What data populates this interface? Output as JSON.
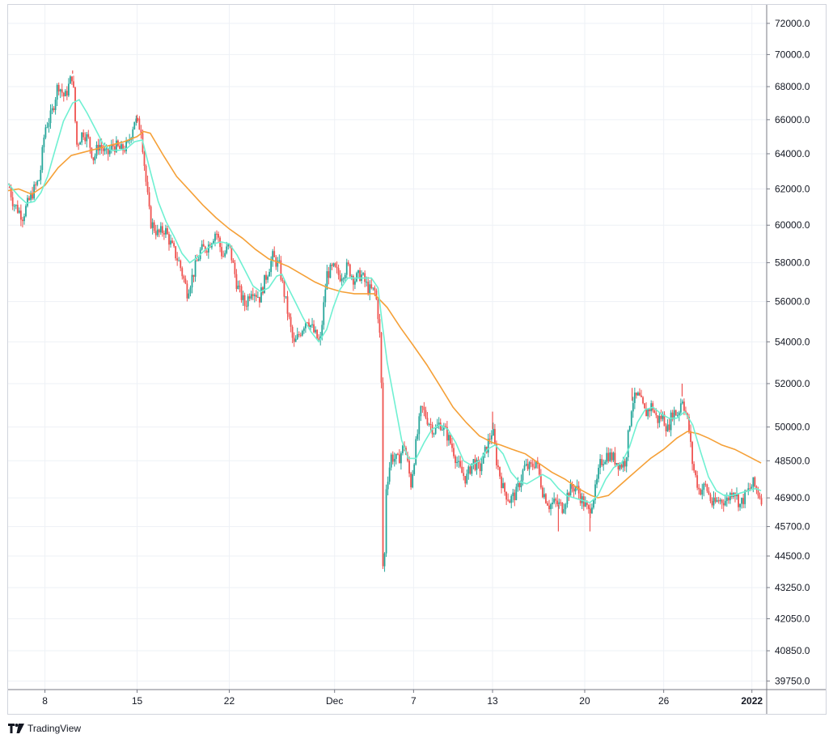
{
  "chart_data": {
    "type": "candlestick",
    "y_axis_ticks": [
      "72000.0",
      "70000.0",
      "68000.0",
      "66000.0",
      "64000.0",
      "62000.0",
      "60000.0",
      "58000.0",
      "56000.0",
      "54000.0",
      "52000.0",
      "50000.0",
      "48500.0",
      "46900.0",
      "45700.0",
      "44500.0",
      "43250.0",
      "42050.0",
      "40850.0",
      "39750.0"
    ],
    "y_axis_values": [
      72000,
      70000,
      68000,
      66000,
      64000,
      62000,
      60000,
      58000,
      56000,
      54000,
      52000,
      50000,
      48500,
      46900,
      45700,
      44500,
      43250,
      42050,
      40850,
      39750
    ],
    "y_scale": "log",
    "ylim": [
      39500,
      73000
    ],
    "x_axis_ticks": [
      {
        "label": "8",
        "day": 8,
        "bold": false
      },
      {
        "label": "15",
        "day": 15,
        "bold": false
      },
      {
        "label": "22",
        "day": 22,
        "bold": false
      },
      {
        "label": "Dec",
        "day": 30,
        "bold": false
      },
      {
        "label": "7",
        "day": 36,
        "bold": false
      },
      {
        "label": "13",
        "day": 42,
        "bold": false
      },
      {
        "label": "20",
        "day": 49,
        "bold": false
      },
      {
        "label": "26",
        "day": 55,
        "bold": false
      },
      {
        "label": "2022",
        "day": 61.7,
        "bold": true
      }
    ],
    "xlim": [
      5.2,
      62.7
    ],
    "grid": true,
    "colors": {
      "up": "#26a69a",
      "down": "#ef5350",
      "ma_fast": "#6ff0d2",
      "ma_slow": "#f5a037",
      "grid": "#eef1f6",
      "axis": "#787b86"
    },
    "price_path": [
      [
        5.2,
        62400
      ],
      [
        5.6,
        61200
      ],
      [
        6.3,
        60500
      ],
      [
        7.0,
        61700
      ],
      [
        7.6,
        62600
      ],
      [
        8.0,
        65500
      ],
      [
        8.5,
        66300
      ],
      [
        9.0,
        68200
      ],
      [
        9.5,
        67300
      ],
      [
        10.1,
        68800
      ],
      [
        10.4,
        64500
      ],
      [
        10.9,
        65300
      ],
      [
        11.3,
        64800
      ],
      [
        11.7,
        63700
      ],
      [
        12.1,
        64600
      ],
      [
        12.7,
        63900
      ],
      [
        13.2,
        64500
      ],
      [
        13.8,
        64200
      ],
      [
        14.3,
        64500
      ],
      [
        14.8,
        66000
      ],
      [
        15.3,
        65500
      ],
      [
        15.7,
        62200
      ],
      [
        16.0,
        60200
      ],
      [
        16.6,
        59500
      ],
      [
        17.1,
        59800
      ],
      [
        17.6,
        58900
      ],
      [
        18.2,
        58000
      ],
      [
        18.8,
        56500
      ],
      [
        19.3,
        57500
      ],
      [
        19.8,
        58600
      ],
      [
        20.4,
        58900
      ],
      [
        21.0,
        59700
      ],
      [
        21.5,
        58300
      ],
      [
        22.0,
        58900
      ],
      [
        22.6,
        56800
      ],
      [
        23.2,
        55800
      ],
      [
        23.7,
        56700
      ],
      [
        24.3,
        56200
      ],
      [
        24.8,
        57300
      ],
      [
        25.3,
        58300
      ],
      [
        25.8,
        57800
      ],
      [
        26.4,
        55600
      ],
      [
        26.9,
        53800
      ],
      [
        27.4,
        54500
      ],
      [
        27.9,
        55200
      ],
      [
        28.4,
        54500
      ],
      [
        28.9,
        53900
      ],
      [
        29.4,
        57400
      ],
      [
        29.9,
        57700
      ],
      [
        30.4,
        57300
      ],
      [
        31.0,
        57800
      ],
      [
        31.5,
        57100
      ],
      [
        32.0,
        57400
      ],
      [
        32.6,
        56600
      ],
      [
        33.1,
        56500
      ],
      [
        33.4,
        54800
      ],
      [
        33.6,
        51000
      ],
      [
        33.7,
        42000
      ],
      [
        33.9,
        47300
      ],
      [
        34.3,
        48700
      ],
      [
        34.8,
        48500
      ],
      [
        35.3,
        49200
      ],
      [
        35.8,
        47500
      ],
      [
        36.2,
        49300
      ],
      [
        36.6,
        50900
      ],
      [
        37.1,
        50300
      ],
      [
        37.6,
        49800
      ],
      [
        38.0,
        50200
      ],
      [
        38.5,
        49700
      ],
      [
        39.0,
        49000
      ],
      [
        39.5,
        48100
      ],
      [
        40.0,
        47700
      ],
      [
        40.5,
        48500
      ],
      [
        41.0,
        48100
      ],
      [
        41.5,
        49000
      ],
      [
        42.0,
        49900
      ],
      [
        42.3,
        48500
      ],
      [
        42.8,
        47300
      ],
      [
        43.3,
        46800
      ],
      [
        43.8,
        47100
      ],
      [
        44.4,
        48200
      ],
      [
        44.9,
        48200
      ],
      [
        45.3,
        48500
      ],
      [
        45.8,
        47200
      ],
      [
        46.3,
        46600
      ],
      [
        46.8,
        46700
      ],
      [
        47.3,
        46500
      ],
      [
        47.8,
        47200
      ],
      [
        48.3,
        47400
      ],
      [
        48.8,
        46800
      ],
      [
        49.3,
        46300
      ],
      [
        49.8,
        47200
      ],
      [
        50.2,
        48400
      ],
      [
        50.7,
        48800
      ],
      [
        51.2,
        48600
      ],
      [
        51.7,
        48300
      ],
      [
        52.1,
        48500
      ],
      [
        52.6,
        51200
      ],
      [
        53.1,
        51400
      ],
      [
        53.6,
        50600
      ],
      [
        54.1,
        51000
      ],
      [
        54.5,
        50300
      ],
      [
        54.9,
        50500
      ],
      [
        55.3,
        49900
      ],
      [
        55.7,
        50700
      ],
      [
        56.1,
        50600
      ],
      [
        56.4,
        51400
      ],
      [
        56.9,
        50000
      ],
      [
        57.2,
        48300
      ],
      [
        57.7,
        47200
      ],
      [
        58.2,
        47400
      ],
      [
        58.7,
        46600
      ],
      [
        59.2,
        46800
      ],
      [
        59.8,
        46800
      ],
      [
        60.3,
        47300
      ],
      [
        60.8,
        46600
      ],
      [
        61.3,
        47100
      ],
      [
        61.8,
        47500
      ],
      [
        62.4,
        46900
      ]
    ],
    "wicks": [
      {
        "day": 33.7,
        "low": 42000
      },
      {
        "day": 10.1,
        "high": 69000
      },
      {
        "day": 15.0,
        "high": 66300
      },
      {
        "day": 52.6,
        "high": 51800
      },
      {
        "day": 56.4,
        "high": 52000
      },
      {
        "day": 42.0,
        "high": 50700
      },
      {
        "day": 47.0,
        "low": 45500
      },
      {
        "day": 49.4,
        "low": 45500
      }
    ],
    "ma_fast": [
      [
        5.2,
        62300
      ],
      [
        6.0,
        61600
      ],
      [
        6.6,
        61200
      ],
      [
        7.2,
        61300
      ],
      [
        7.7,
        61800
      ],
      [
        8.2,
        62700
      ],
      [
        8.8,
        64300
      ],
      [
        9.4,
        65900
      ],
      [
        10.1,
        67000
      ],
      [
        10.6,
        67200
      ],
      [
        11.2,
        66400
      ],
      [
        11.8,
        65500
      ],
      [
        12.4,
        64600
      ],
      [
        13.0,
        64200
      ],
      [
        13.6,
        64200
      ],
      [
        14.2,
        64300
      ],
      [
        14.8,
        64700
      ],
      [
        15.4,
        64800
      ],
      [
        16.0,
        63000
      ],
      [
        16.6,
        61300
      ],
      [
        17.2,
        60200
      ],
      [
        17.8,
        59400
      ],
      [
        18.4,
        58500
      ],
      [
        19.0,
        58000
      ],
      [
        19.6,
        58300
      ],
      [
        20.2,
        58700
      ],
      [
        20.8,
        59000
      ],
      [
        21.4,
        59100
      ],
      [
        22.0,
        59000
      ],
      [
        22.6,
        58400
      ],
      [
        23.2,
        57600
      ],
      [
        23.8,
        56800
      ],
      [
        24.4,
        56500
      ],
      [
        25.0,
        56700
      ],
      [
        25.6,
        57300
      ],
      [
        26.0,
        57400
      ],
      [
        26.4,
        56800
      ],
      [
        27.0,
        56000
      ],
      [
        27.6,
        55200
      ],
      [
        28.2,
        54500
      ],
      [
        28.8,
        54000
      ],
      [
        29.4,
        54600
      ],
      [
        29.9,
        55700
      ],
      [
        30.4,
        56600
      ],
      [
        31.0,
        57200
      ],
      [
        31.6,
        57200
      ],
      [
        32.2,
        57200
      ],
      [
        32.8,
        57200
      ],
      [
        33.3,
        56700
      ],
      [
        33.6,
        55000
      ],
      [
        34.0,
        53000
      ],
      [
        34.6,
        51000
      ],
      [
        35.1,
        49400
      ],
      [
        35.6,
        48600
      ],
      [
        36.2,
        48600
      ],
      [
        36.8,
        49300
      ],
      [
        37.4,
        49900
      ],
      [
        38.0,
        50100
      ],
      [
        38.6,
        49900
      ],
      [
        39.2,
        49300
      ],
      [
        39.8,
        48500
      ],
      [
        40.4,
        48300
      ],
      [
        41.0,
        48500
      ],
      [
        41.6,
        49000
      ],
      [
        42.2,
        49200
      ],
      [
        42.8,
        48800
      ],
      [
        43.4,
        48000
      ],
      [
        44.0,
        47600
      ],
      [
        44.6,
        47500
      ],
      [
        45.2,
        47700
      ],
      [
        45.8,
        47900
      ],
      [
        46.4,
        47700
      ],
      [
        47.0,
        47300
      ],
      [
        47.6,
        47000
      ],
      [
        48.2,
        46900
      ],
      [
        48.8,
        46800
      ],
      [
        49.4,
        46700
      ],
      [
        50.0,
        47000
      ],
      [
        50.6,
        47700
      ],
      [
        51.2,
        48200
      ],
      [
        51.8,
        48400
      ],
      [
        52.4,
        49100
      ],
      [
        53.0,
        50200
      ],
      [
        53.6,
        50800
      ],
      [
        54.2,
        50900
      ],
      [
        54.8,
        50600
      ],
      [
        55.4,
        50400
      ],
      [
        56.0,
        50400
      ],
      [
        56.6,
        50700
      ],
      [
        57.2,
        50100
      ],
      [
        57.8,
        48900
      ],
      [
        58.4,
        47800
      ],
      [
        59.0,
        47200
      ],
      [
        59.6,
        47000
      ],
      [
        60.2,
        47000
      ],
      [
        60.8,
        47100
      ],
      [
        61.4,
        47200
      ],
      [
        62.0,
        47300
      ],
      [
        62.4,
        47200
      ]
    ],
    "ma_slow": [
      [
        5.2,
        61900
      ],
      [
        6.0,
        62000
      ],
      [
        7.0,
        61700
      ],
      [
        8.0,
        62200
      ],
      [
        9.0,
        63200
      ],
      [
        10.0,
        63900
      ],
      [
        11.0,
        64100
      ],
      [
        12.0,
        64300
      ],
      [
        13.0,
        64500
      ],
      [
        14.0,
        64700
      ],
      [
        15.0,
        65000
      ],
      [
        15.5,
        65300
      ],
      [
        16.0,
        65200
      ],
      [
        17.0,
        63900
      ],
      [
        18.0,
        62700
      ],
      [
        19.0,
        61900
      ],
      [
        20.0,
        61100
      ],
      [
        21.0,
        60400
      ],
      [
        22.0,
        59800
      ],
      [
        23.0,
        59300
      ],
      [
        24.0,
        58700
      ],
      [
        25.0,
        58200
      ],
      [
        25.8,
        58000
      ],
      [
        26.5,
        57800
      ],
      [
        27.5,
        57400
      ],
      [
        28.5,
        57000
      ],
      [
        29.5,
        56700
      ],
      [
        30.5,
        56500
      ],
      [
        31.5,
        56400
      ],
      [
        32.5,
        56400
      ],
      [
        33.0,
        56400
      ],
      [
        34.0,
        55700
      ],
      [
        35.0,
        54700
      ],
      [
        36.0,
        53800
      ],
      [
        37.0,
        52900
      ],
      [
        38.0,
        51900
      ],
      [
        39.0,
        50900
      ],
      [
        40.0,
        50200
      ],
      [
        41.0,
        49600
      ],
      [
        42.0,
        49300
      ],
      [
        42.6,
        49200
      ],
      [
        43.5,
        49000
      ],
      [
        44.5,
        48800
      ],
      [
        45.5,
        48400
      ],
      [
        46.5,
        48000
      ],
      [
        47.5,
        47700
      ],
      [
        48.5,
        47300
      ],
      [
        49.5,
        47000
      ],
      [
        50.0,
        46900
      ],
      [
        50.8,
        47000
      ],
      [
        51.6,
        47400
      ],
      [
        52.4,
        47800
      ],
      [
        53.2,
        48200
      ],
      [
        54.0,
        48600
      ],
      [
        55.0,
        49000
      ],
      [
        56.0,
        49500
      ],
      [
        56.8,
        49800
      ],
      [
        57.6,
        49700
      ],
      [
        58.4,
        49500
      ],
      [
        59.4,
        49200
      ],
      [
        60.4,
        49000
      ],
      [
        61.4,
        48700
      ],
      [
        62.4,
        48400
      ]
    ]
  },
  "branding": {
    "logo_text": "TradingView"
  }
}
